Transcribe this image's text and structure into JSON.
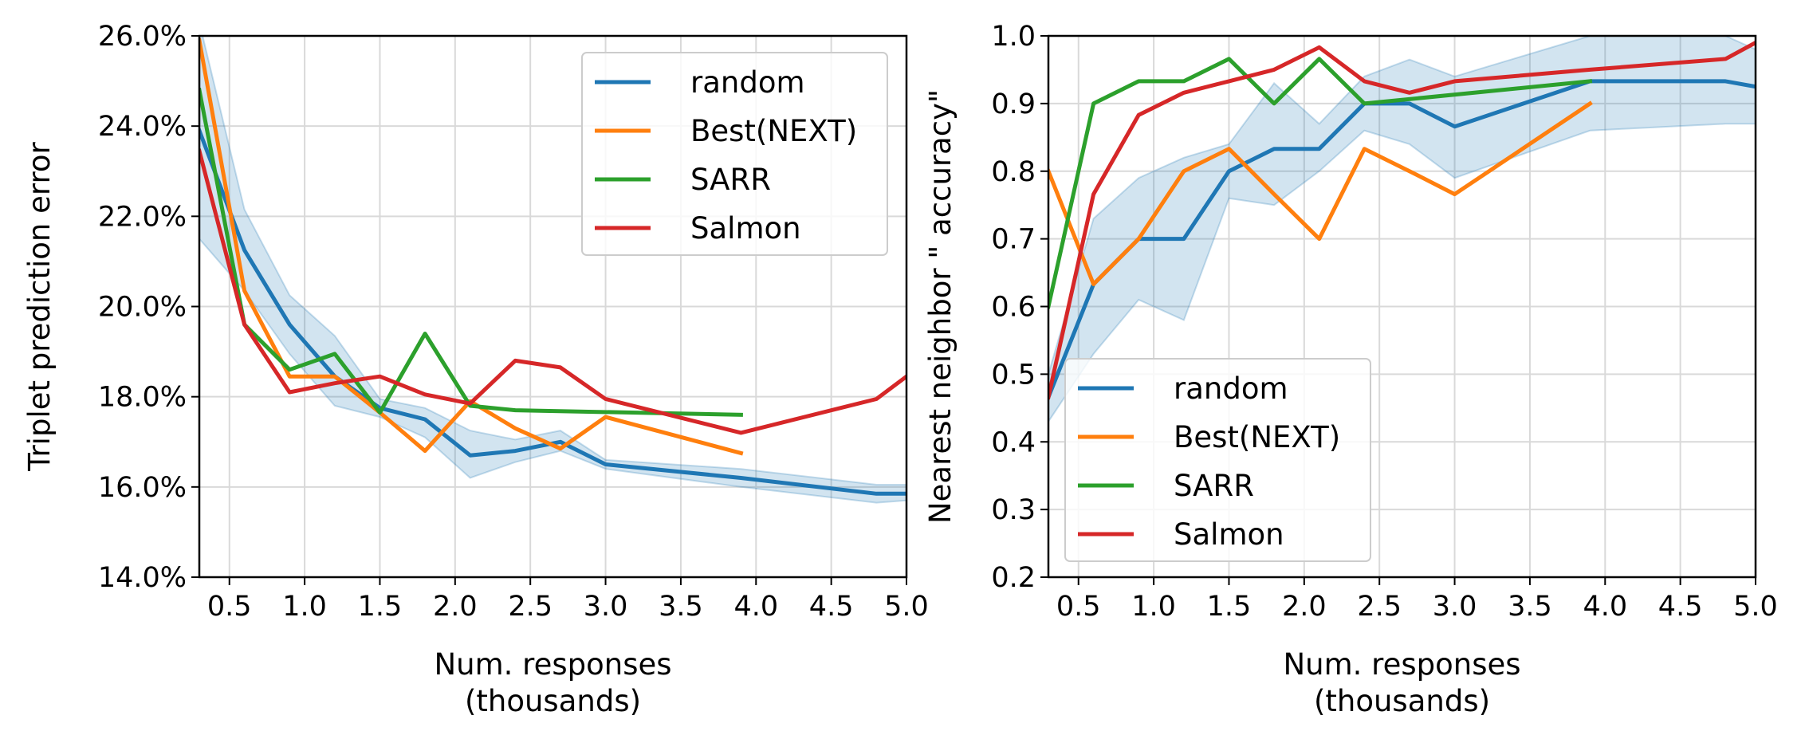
{
  "chart_data": [
    {
      "type": "line",
      "title": "",
      "xlabel": "Num. responses",
      "xlabel2": "(thousands)",
      "ylabel": "Triplet prediction error",
      "xlim": [
        0.3,
        5.0
      ],
      "ylim": [
        0.14,
        0.26
      ],
      "xticks": [
        0.5,
        1.0,
        1.5,
        2.0,
        2.5,
        3.0,
        3.5,
        4.0,
        4.5,
        5.0
      ],
      "xtick_labels": [
        "0.5",
        "1.0",
        "1.5",
        "2.0",
        "2.5",
        "3.0",
        "3.5",
        "4.0",
        "4.5",
        "5.0"
      ],
      "yticks": [
        0.14,
        0.16,
        0.18,
        0.2,
        0.22,
        0.24,
        0.26
      ],
      "ytick_labels": [
        "14.0%",
        "16.0%",
        "18.0%",
        "20.0%",
        "22.0%",
        "24.0%",
        "26.0%"
      ],
      "grid": true,
      "legend_position": "top-right",
      "band": {
        "series": "random",
        "x": [
          0.3,
          0.6,
          0.9,
          1.2,
          1.5,
          1.8,
          2.1,
          2.4,
          2.7,
          3.0,
          3.9,
          4.8,
          5.0
        ],
        "upper": [
          0.263,
          0.2215,
          0.2025,
          0.1935,
          0.1795,
          0.1775,
          0.1725,
          0.1705,
          0.1725,
          0.166,
          0.164,
          0.1605,
          0.1605
        ],
        "lower": [
          0.215,
          0.2035,
          0.1895,
          0.178,
          0.1755,
          0.171,
          0.162,
          0.1655,
          0.168,
          0.164,
          0.16,
          0.1565,
          0.157
        ]
      },
      "series": [
        {
          "name": "random",
          "color": "#1f77b4",
          "x": [
            0.3,
            0.6,
            0.9,
            1.2,
            1.5,
            1.8,
            2.1,
            2.4,
            2.7,
            3.0,
            3.9,
            4.8,
            5.0
          ],
          "y": [
            0.239,
            0.2125,
            0.196,
            0.1845,
            0.1775,
            0.175,
            0.167,
            0.168,
            0.17,
            0.165,
            0.162,
            0.1585,
            0.1585
          ]
        },
        {
          "name": "Best(NEXT)",
          "color": "#ff7f0e",
          "x": [
            0.3,
            0.6,
            0.9,
            1.2,
            1.5,
            1.8,
            2.1,
            2.4,
            2.7,
            3.0,
            3.9
          ],
          "y": [
            0.259,
            0.2035,
            0.1845,
            0.1845,
            0.1765,
            0.168,
            0.179,
            0.173,
            0.1685,
            0.1755,
            0.1675
          ]
        },
        {
          "name": "SARR",
          "color": "#2ca02c",
          "x": [
            0.3,
            0.6,
            0.9,
            1.2,
            1.5,
            1.8,
            2.1,
            2.4,
            3.9
          ],
          "y": [
            0.248,
            0.196,
            0.186,
            0.1895,
            0.1765,
            0.194,
            0.178,
            0.177,
            0.176
          ]
        },
        {
          "name": "Salmon",
          "color": "#d62728",
          "x": [
            0.3,
            0.6,
            0.9,
            1.2,
            1.5,
            1.8,
            2.1,
            2.4,
            2.7,
            3.0,
            3.9,
            4.8,
            5.0
          ],
          "y": [
            0.2345,
            0.196,
            0.181,
            0.183,
            0.1845,
            0.1805,
            0.1785,
            0.188,
            0.1865,
            0.1795,
            0.172,
            0.1795,
            0.1845
          ]
        }
      ]
    },
    {
      "type": "line",
      "title": "",
      "xlabel": "Num. responses",
      "xlabel2": "(thousands)",
      "ylabel": "Nearest neighbor \" accuracy\"",
      "xlim": [
        0.3,
        5.0
      ],
      "ylim": [
        0.2,
        1.0
      ],
      "xticks": [
        0.5,
        1.0,
        1.5,
        2.0,
        2.5,
        3.0,
        3.5,
        4.0,
        4.5,
        5.0
      ],
      "xtick_labels": [
        "0.5",
        "1.0",
        "1.5",
        "2.0",
        "2.5",
        "3.0",
        "3.5",
        "4.0",
        "4.5",
        "5.0"
      ],
      "yticks": [
        0.2,
        0.3,
        0.4,
        0.5,
        0.6,
        0.7,
        0.8,
        0.9,
        1.0
      ],
      "ytick_labels": [
        "0.2",
        "0.3",
        "0.4",
        "0.5",
        "0.6",
        "0.7",
        "0.8",
        "0.9",
        "1.0"
      ],
      "grid": true,
      "legend_position": "lower-left",
      "band": {
        "series": "random",
        "x": [
          0.3,
          0.6,
          0.9,
          1.2,
          1.5,
          1.8,
          2.1,
          2.4,
          2.7,
          3.0,
          3.9,
          4.8,
          5.0
        ],
        "upper": [
          0.5,
          0.73,
          0.79,
          0.82,
          0.84,
          0.93,
          0.87,
          0.94,
          0.965,
          0.94,
          1.0,
          1.0,
          0.98
        ],
        "lower": [
          0.43,
          0.53,
          0.61,
          0.58,
          0.76,
          0.75,
          0.8,
          0.86,
          0.84,
          0.79,
          0.86,
          0.87,
          0.87
        ]
      },
      "series": [
        {
          "name": "random",
          "color": "#1f77b4",
          "x": [
            0.3,
            0.6,
            0.9,
            1.2,
            1.5,
            1.8,
            2.1,
            2.4,
            2.7,
            3.0,
            3.9,
            4.8,
            5.0
          ],
          "y": [
            0.466,
            0.633,
            0.7,
            0.7,
            0.8,
            0.833,
            0.833,
            0.9,
            0.9,
            0.866,
            0.933,
            0.933,
            0.925
          ]
        },
        {
          "name": "Best(NEXT)",
          "color": "#ff7f0e",
          "x": [
            0.3,
            0.6,
            0.9,
            1.2,
            1.5,
            1.8,
            2.1,
            2.4,
            2.7,
            3.0,
            3.9
          ],
          "y": [
            0.8,
            0.633,
            0.7,
            0.8,
            0.833,
            0.766,
            0.7,
            0.833,
            0.8,
            0.766,
            0.9
          ]
        },
        {
          "name": "SARR",
          "color": "#2ca02c",
          "x": [
            0.3,
            0.6,
            0.9,
            1.2,
            1.5,
            1.8,
            2.1,
            2.4,
            3.9
          ],
          "y": [
            0.6,
            0.9,
            0.933,
            0.933,
            0.966,
            0.9,
            0.966,
            0.9,
            0.933
          ]
        },
        {
          "name": "Salmon",
          "color": "#d62728",
          "x": [
            0.3,
            0.6,
            0.9,
            1.2,
            1.5,
            1.8,
            2.1,
            2.4,
            2.7,
            3.0,
            3.9,
            4.8,
            5.0
          ],
          "y": [
            0.466,
            0.766,
            0.883,
            0.916,
            0.933,
            0.95,
            0.983,
            0.933,
            0.916,
            0.933,
            0.95,
            0.966,
            0.99
          ]
        }
      ]
    }
  ]
}
